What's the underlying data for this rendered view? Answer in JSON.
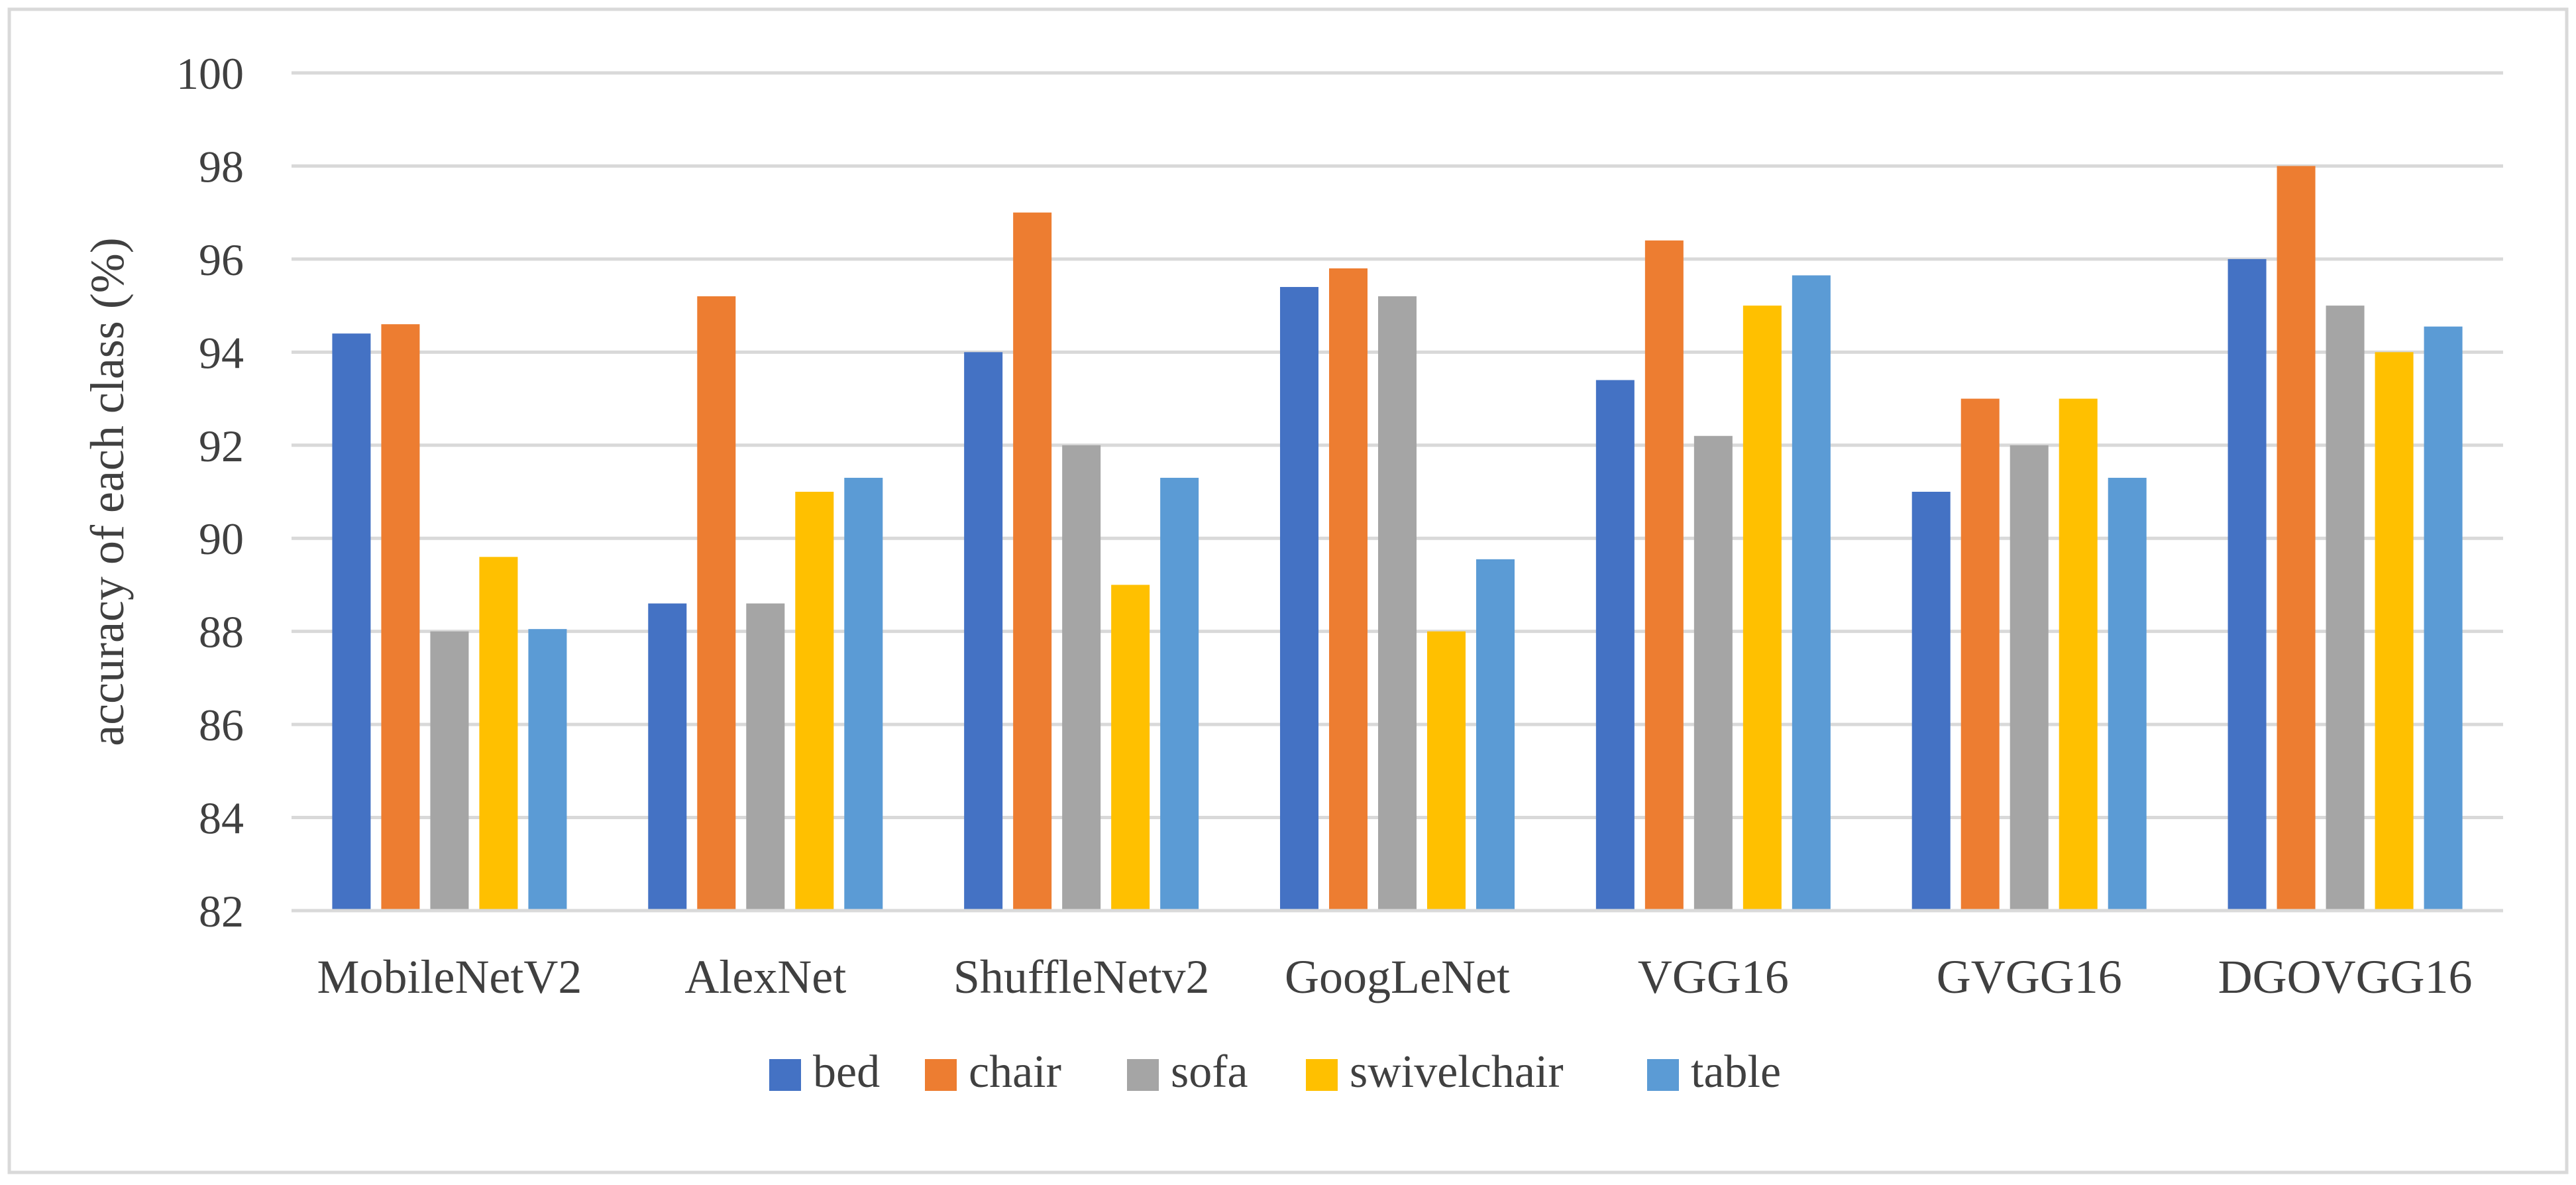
{
  "chart_data": {
    "type": "bar",
    "title": "",
    "xlabel": "",
    "ylabel": "accuracy of each class (%)",
    "ylim": [
      82,
      100
    ],
    "yticks": [
      82,
      84,
      86,
      88,
      90,
      92,
      94,
      96,
      98,
      100
    ],
    "grid": true,
    "legend_position": "bottom",
    "categories": [
      "MobileNetV2",
      "AlexNet",
      "ShuffleNetv2",
      "GoogLeNet",
      "VGG16",
      "GVGG16",
      "DGOVGG16"
    ],
    "series": [
      {
        "name": "bed",
        "color": "#4472C4",
        "values": [
          94.4,
          88.6,
          94.0,
          95.4,
          93.4,
          91.0,
          96.0
        ]
      },
      {
        "name": "chair",
        "color": "#ED7D31",
        "values": [
          94.6,
          95.2,
          97.0,
          95.8,
          96.4,
          93.0,
          98.0
        ]
      },
      {
        "name": "sofa",
        "color": "#A5A5A5",
        "values": [
          88.0,
          88.6,
          92.0,
          95.2,
          92.2,
          92.0,
          95.0
        ]
      },
      {
        "name": "swivelchair",
        "color": "#FFC000",
        "values": [
          89.6,
          91.0,
          89.0,
          88.0,
          95.0,
          93.0,
          94.0
        ]
      },
      {
        "name": "table",
        "color": "#5B9BD5",
        "values": [
          88.05,
          91.3,
          91.3,
          89.55,
          95.65,
          91.3,
          94.55
        ]
      }
    ]
  }
}
